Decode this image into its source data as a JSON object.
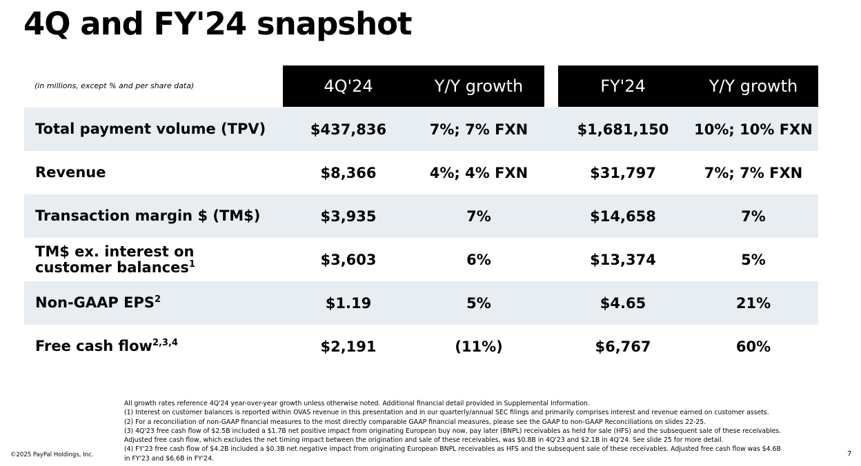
{
  "title": "4Q and FY'24 snapshot",
  "table": {
    "note": "(in millions, except % and per share data)",
    "header": [
      "4Q'24",
      "Y/Y growth",
      "FY'24",
      "Y/Y growth"
    ],
    "rows": [
      {
        "label": "Total payment volume (TPV)",
        "cells": [
          "$437,836",
          "7%; 7% FXN",
          "$1,681,150",
          "10%; 10% FXN"
        ]
      },
      {
        "label": "Revenue",
        "cells": [
          "$8,366",
          "4%; 4% FXN",
          "$31,797",
          "7%; 7% FXN"
        ]
      },
      {
        "label": "Transaction margin $ (TM$)",
        "cells": [
          "$3,935",
          "7%",
          "$14,658",
          "7%"
        ]
      },
      {
        "label": "TM$ ex. interest on customer balances",
        "sup": "1",
        "cells": [
          "$3,603",
          "6%",
          "$13,374",
          "5%"
        ]
      },
      {
        "label": "Non-GAAP EPS",
        "sup": "2",
        "cells": [
          "$1.19",
          "5%",
          "$4.65",
          "21%"
        ]
      },
      {
        "label": "Free cash flow",
        "sup": "2,3,4",
        "cells": [
          "$2,191",
          "(11%)",
          "$6,767",
          "60%"
        ]
      }
    ]
  },
  "footnotes": [
    "All growth rates reference 4Q'24 year-over-year growth unless otherwise noted. Additional financial detail provided in Supplemental Information.",
    "(1) Interest on customer balances is reported within OVAS revenue in this presentation and in our quarterly/annual SEC filings and primarily comprises interest and revenue earned on customer assets.",
    "(2) For a reconciliation of non-GAAP financial measures to the most directly comparable GAAP financial measures, please see the GAAP to non-GAAP Reconciliations on slides 22-25.",
    "(3) 4Q'23 free cash flow of $2.5B included a $1.7B net positive impact from originating European buy now, pay later (BNPL) receivables as held for sale (HFS) and the subsequent sale of these receivables. Adjusted free cash flow, which excludes the net timing impact between the origination and sale of these receivables, was $0.8B in 4Q'23 and $2.1B in 4Q'24. See slide 25 for more detail.",
    "(4) FY'23 free cash flow of $4.2B included a $0.3B net negative impact from originating European BNPL receivables as HFS and the subsequent sale of these receivables. Adjusted free cash flow was $4.6B in FY'23 and $6.6B in FY'24."
  ],
  "copyright": "©2025 PayPal Holdings, Inc.",
  "page_number": "7"
}
